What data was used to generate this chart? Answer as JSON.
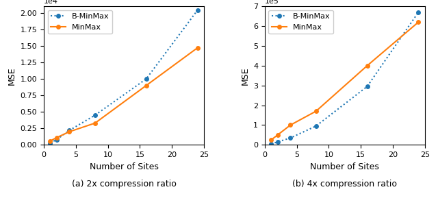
{
  "x_values": [
    1,
    2,
    4,
    8,
    16,
    24
  ],
  "left": {
    "bminmax": [
      300,
      800,
      2200,
      4500,
      10000,
      20400
    ],
    "minmax": [
      600,
      1100,
      2000,
      3300,
      9000,
      14700
    ],
    "ylim": [
      0,
      21000
    ],
    "ylabel": "MSE",
    "xlabel": "Number of Sites",
    "caption": "(a) 2x compression ratio"
  },
  "right": {
    "bminmax": [
      5000,
      15000,
      35000,
      95000,
      295000,
      670000
    ],
    "minmax": [
      25000,
      50000,
      100000,
      170000,
      400000,
      620000
    ],
    "ylim": [
      0,
      700000
    ],
    "ylabel": "MSE",
    "xlabel": "Number of Sites",
    "caption": "(b) 4x compression ratio"
  },
  "bminmax_color": "#1f77b4",
  "minmax_color": "#ff7f0e",
  "bminmax_label": "B-MinMax",
  "minmax_label": "MinMax",
  "marker": "o",
  "markersize": 4,
  "linewidth": 1.5
}
